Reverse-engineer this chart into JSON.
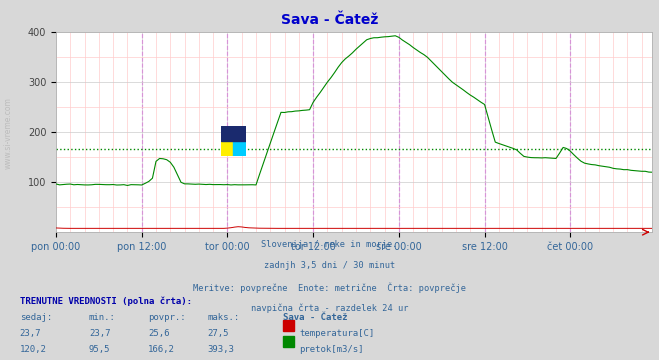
{
  "title": "Sava - Čatež",
  "title_color": "#0000cc",
  "bg_color": "#d8d8d8",
  "plot_bg_color": "#ffffff",
  "grid_minor_color": "#ffcccc",
  "grid_major_color": "#cccccc",
  "x_tick_labels": [
    "pon 00:00",
    "pon 12:00",
    "tor 00:00",
    "tor 12:00",
    "sre 00:00",
    "sre 12:00",
    "čet 00:00"
  ],
  "ylim": [
    0,
    400
  ],
  "yticks": [
    100,
    200,
    300,
    400
  ],
  "vline_color": "#ee00ee",
  "temp_color": "#cc0000",
  "flow_color": "#008800",
  "avg_flow": 166.2,
  "avg_color": "#008800",
  "subtitle_lines": [
    "Slovenija / reke in morje.",
    "zadnjh 3,5 dni / 30 minut",
    "Meritve: povprečne  Enote: metrične  Črta: povprečje",
    "navpična črta - razdelek 24 ur"
  ],
  "label_header": "TRENUTNE VREDNOSTI (polna črta):",
  "col_headers": [
    "sedaj:",
    "min.:",
    "povpr.:",
    "maks.:",
    "Sava - Čatež"
  ],
  "row1": [
    "23,7",
    "23,7",
    "25,6",
    "27,5"
  ],
  "row1_label": "temperatura[C]",
  "row1_color": "#cc0000",
  "row2": [
    "120,2",
    "95,5",
    "166,2",
    "393,3"
  ],
  "row2_label": "pretok[m3/s]",
  "row2_color": "#008800",
  "watermark": "www.si-vreme.com",
  "n_points": 168
}
